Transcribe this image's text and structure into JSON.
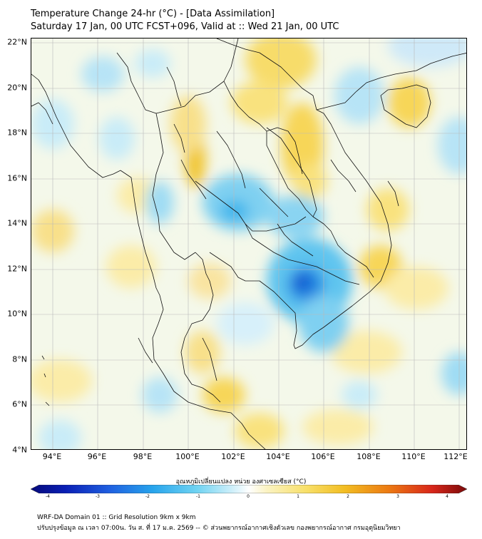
{
  "title": {
    "line1": "Temperature Change 24-hr (°C) - [Data Assimilation]",
    "line2": "Saturday 17 Jan, 00 UTC FCST+096, Valid at :: Wed 21 Jan, 00 UTC"
  },
  "map": {
    "lat_labels": [
      "22°N",
      "20°N",
      "18°N",
      "16°N",
      "14°N",
      "12°N",
      "10°N",
      "8°N",
      "6°N",
      "4°N"
    ],
    "lon_labels": [
      "94°E",
      "96°E",
      "98°E",
      "100°E",
      "102°E",
      "104°E",
      "106°E",
      "108°E",
      "110°E",
      "112°E"
    ],
    "lat_range": [
      4,
      22
    ],
    "lon_range": [
      93,
      112
    ]
  },
  "colorbar": {
    "title": "อุณหภูมิเปลี่ยนแปลง หน่วย องศาเซลเซียส (°C)",
    "ticks": [
      "-4",
      "-3",
      "-2",
      "-1",
      "0",
      "1",
      "2",
      "3",
      "4"
    ],
    "min": -4,
    "max": 4
  },
  "footer": {
    "line1": "WRF-DA Domain 01 :: Grid Resolution 9km x 9km",
    "line2": "ปรับปรุงข้อมูล ณ เวลา 07:00น. วัน ส. ที่ 17 ม.ค. 2569 -- © ส่วนพยากรณ์อากาศเชิงตัวเลข กองพยากรณ์อากาศ กรมอุตุนิยมวิทยา"
  }
}
